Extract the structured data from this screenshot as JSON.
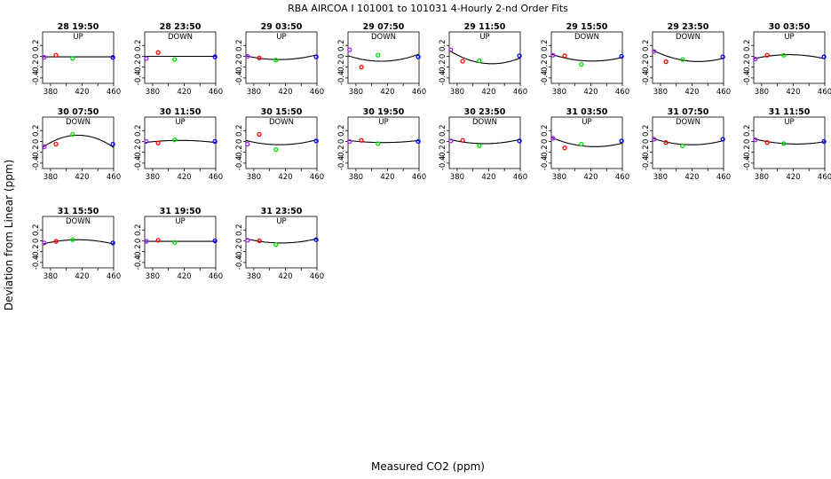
{
  "chart_data": {
    "type": "scatter",
    "title": "RBA   AIRCOA I   101001 to 101031   4-Hourly 2-nd Order Fits",
    "xlabel": "Measured CO2 (ppm)",
    "ylabel": "Deviation from Linear (ppm)",
    "xlim": [
      370,
      460
    ],
    "ylim": [
      -0.5,
      0.45
    ],
    "xticks": [
      380,
      420,
      460
    ],
    "yticks": [
      0.2,
      0.0,
      -0.2,
      -0.4
    ],
    "ytick_labels": [
      "0.2",
      "0",
      "-0.2",
      "-0.4"
    ],
    "ncols": 8,
    "colors": {
      "fit": "#000000",
      "s1": "#a020f0",
      "s2": "#ff0000",
      "s3": "#00dd00",
      "s4": "#0000ff"
    },
    "panels": [
      {
        "title": "28 19:50",
        "dir": "UP",
        "points": [
          [
            372,
            -0.02
          ],
          [
            387,
            0.02
          ],
          [
            408,
            -0.04
          ],
          [
            459,
            -0.02
          ]
        ],
        "coef": [
          0.0,
          0.0,
          -0.01
        ]
      },
      {
        "title": "28 23:50",
        "dir": "DOWN",
        "points": [
          [
            372,
            -0.04
          ],
          [
            387,
            0.07
          ],
          [
            408,
            -0.06
          ],
          [
            459,
            -0.01
          ]
        ],
        "coef": [
          0.0,
          0.0,
          0.0
        ]
      },
      {
        "title": "29 03:50",
        "dir": "UP",
        "points": [
          [
            372,
            0.0
          ],
          [
            387,
            -0.03
          ],
          [
            408,
            -0.07
          ],
          [
            459,
            -0.01
          ]
        ],
        "coef": [
          3.9e-05,
          0.00021,
          -0.06
        ]
      },
      {
        "title": "29 07:50",
        "dir": "DOWN",
        "points": [
          [
            372,
            0.12
          ],
          [
            387,
            -0.2
          ],
          [
            408,
            0.02
          ],
          [
            459,
            -0.01
          ]
        ],
        "coef": [
          5.7e-05,
          0.00033,
          -0.09
        ]
      },
      {
        "title": "29 11:50",
        "dir": "UP",
        "points": [
          [
            372,
            0.12
          ],
          [
            387,
            -0.09
          ],
          [
            408,
            -0.08
          ],
          [
            459,
            0.01
          ]
        ],
        "coef": [
          8.36e-05,
          -0.00154,
          -0.13
        ]
      },
      {
        "title": "29 15:50",
        "dir": "DOWN",
        "points": [
          [
            372,
            0.02
          ],
          [
            387,
            0.01
          ],
          [
            408,
            -0.15
          ],
          [
            459,
            0.0
          ]
        ],
        "coef": [
          4.66e-05,
          -0.00066,
          -0.085
        ]
      },
      {
        "title": "29 23:50",
        "dir": "DOWN",
        "points": [
          [
            372,
            0.09
          ],
          [
            387,
            -0.1
          ],
          [
            408,
            -0.06
          ],
          [
            459,
            -0.01
          ]
        ],
        "coef": [
          6.21e-05,
          -0.00165,
          -0.085
        ]
      },
      {
        "title": "30 03:50",
        "dir": "UP",
        "points": [
          [
            372,
            -0.05
          ],
          [
            387,
            0.02
          ],
          [
            408,
            0.02
          ],
          [
            459,
            -0.01
          ]
        ],
        "coef": [
          -3.75e-05,
          0.0,
          0.03
        ]
      },
      {
        "title": "30 07:50",
        "dir": "DOWN",
        "points": [
          [
            372,
            -0.1
          ],
          [
            387,
            -0.05
          ],
          [
            408,
            0.13
          ],
          [
            459,
            -0.05
          ]
        ],
        "coef": [
          -0.000111,
          0.0,
          0.115
        ]
      },
      {
        "title": "30 11:50",
        "dir": "UP",
        "points": [
          [
            372,
            0.0
          ],
          [
            387,
            -0.03
          ],
          [
            408,
            0.03
          ],
          [
            459,
            0.0
          ]
        ],
        "coef": [
          -1.97e-05,
          0.0,
          0.02
        ]
      },
      {
        "title": "30 15:50",
        "dir": "DOWN",
        "points": [
          [
            372,
            -0.05
          ],
          [
            387,
            0.13
          ],
          [
            408,
            -0.15
          ],
          [
            459,
            0.01
          ]
        ],
        "coef": [
          4.23e-05,
          0.000169,
          -0.06
        ]
      },
      {
        "title": "30 19:50",
        "dir": "UP",
        "points": [
          [
            372,
            0.0
          ],
          [
            387,
            0.02
          ],
          [
            408,
            -0.04
          ],
          [
            459,
            0.0
          ]
        ],
        "coef": [
          1.97e-05,
          0.0,
          -0.02
        ]
      },
      {
        "title": "30 23:50",
        "dir": "DOWN",
        "points": [
          [
            372,
            0.01
          ],
          [
            387,
            0.02
          ],
          [
            408,
            -0.08
          ],
          [
            459,
            0.01
          ]
        ],
        "coef": [
          3.94e-05,
          0.0,
          -0.04
        ]
      },
      {
        "title": "31 03:50",
        "dir": "UP",
        "points": [
          [
            372,
            0.06
          ],
          [
            387,
            -0.12
          ],
          [
            408,
            -0.05
          ],
          [
            459,
            0.01
          ]
        ],
        "coef": [
          5.54e-05,
          -0.00116,
          -0.09
        ]
      },
      {
        "title": "31 07:50",
        "dir": "DOWN",
        "points": [
          [
            372,
            0.04
          ],
          [
            387,
            -0.02
          ],
          [
            408,
            -0.08
          ],
          [
            459,
            0.04
          ]
        ],
        "coef": [
          4.83e-05,
          -0.000456,
          -0.06
        ]
      },
      {
        "title": "31 11:50",
        "dir": "UP",
        "points": [
          [
            372,
            0.03
          ],
          [
            387,
            -0.02
          ],
          [
            408,
            -0.04
          ],
          [
            459,
            0.0
          ]
        ],
        "coef": [
          3.37e-05,
          -0.00059,
          -0.045
        ]
      },
      {
        "title": "31 15:50",
        "dir": "DOWN",
        "points": [
          [
            372,
            -0.04
          ],
          [
            387,
            -0.01
          ],
          [
            408,
            0.02
          ],
          [
            459,
            -0.04
          ]
        ],
        "coef": [
          -3.94e-05,
          0.0,
          0.02
        ]
      },
      {
        "title": "31 19:50",
        "dir": "UP",
        "points": [
          [
            372,
            -0.01
          ],
          [
            387,
            0.01
          ],
          [
            408,
            -0.03
          ],
          [
            459,
            0.0
          ]
        ],
        "coef": [
          0.0,
          0.0,
          -0.01
        ]
      },
      {
        "title": "31 23:50",
        "dir": "UP",
        "points": [
          [
            372,
            0.01
          ],
          [
            387,
            0.0
          ],
          [
            408,
            -0.07
          ],
          [
            459,
            0.02
          ]
        ],
        "coef": [
          3.94e-05,
          0.0,
          -0.04
        ]
      }
    ]
  }
}
